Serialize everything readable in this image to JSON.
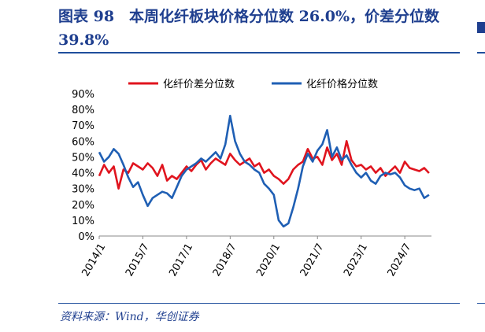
{
  "header": {
    "title": "图表 98　本周化纤板块价格分位数 26.0%，价差分位数 39.8%"
  },
  "footer": {
    "source": "资料来源：Wind，华创证券"
  },
  "chart_data": {
    "type": "line",
    "title": "",
    "xlabel": "",
    "ylabel": "",
    "ylim": [
      0,
      90
    ],
    "yticks": [
      "0%",
      "10%",
      "20%",
      "30%",
      "40%",
      "50%",
      "60%",
      "70%",
      "80%",
      "90%"
    ],
    "xticks": [
      "2014/1",
      "2015/7",
      "2017/1",
      "2018/7",
      "2020/1",
      "2021/7",
      "2023/1",
      "2024/7"
    ],
    "legend_position": "top",
    "grid": false,
    "series": [
      {
        "name": "化纤价差分位数",
        "color": "#e0141e",
        "points": [
          [
            "2014/1",
            38
          ],
          [
            "2014/3",
            45
          ],
          [
            "2014/5",
            40
          ],
          [
            "2014/7",
            44
          ],
          [
            "2014/9",
            30
          ],
          [
            "2014/11",
            42
          ],
          [
            "2015/1",
            40
          ],
          [
            "2015/3",
            46
          ],
          [
            "2015/5",
            44
          ],
          [
            "2015/7",
            42
          ],
          [
            "2015/9",
            46
          ],
          [
            "2015/11",
            43
          ],
          [
            "2016/1",
            38
          ],
          [
            "2016/3",
            45
          ],
          [
            "2016/5",
            35
          ],
          [
            "2016/7",
            38
          ],
          [
            "2016/9",
            36
          ],
          [
            "2016/11",
            40
          ],
          [
            "2017/1",
            44
          ],
          [
            "2017/3",
            41
          ],
          [
            "2017/5",
            45
          ],
          [
            "2017/7",
            48
          ],
          [
            "2017/9",
            42
          ],
          [
            "2017/11",
            46
          ],
          [
            "2018/1",
            49
          ],
          [
            "2018/3",
            47
          ],
          [
            "2018/5",
            45
          ],
          [
            "2018/7",
            52
          ],
          [
            "2018/9",
            48
          ],
          [
            "2018/11",
            45
          ],
          [
            "2019/1",
            47
          ],
          [
            "2019/3",
            49
          ],
          [
            "2019/5",
            44
          ],
          [
            "2019/7",
            46
          ],
          [
            "2019/9",
            40
          ],
          [
            "2019/11",
            42
          ],
          [
            "2020/1",
            38
          ],
          [
            "2020/3",
            36
          ],
          [
            "2020/5",
            33
          ],
          [
            "2020/7",
            36
          ],
          [
            "2020/9",
            42
          ],
          [
            "2020/11",
            45
          ],
          [
            "2021/1",
            47
          ],
          [
            "2021/3",
            55
          ],
          [
            "2021/5",
            49
          ],
          [
            "2021/7",
            50
          ],
          [
            "2021/9",
            45
          ],
          [
            "2021/11",
            56
          ],
          [
            "2022/1",
            48
          ],
          [
            "2022/3",
            52
          ],
          [
            "2022/5",
            45
          ],
          [
            "2022/7",
            60
          ],
          [
            "2022/9",
            48
          ],
          [
            "2022/11",
            44
          ],
          [
            "2023/1",
            45
          ],
          [
            "2023/3",
            42
          ],
          [
            "2023/5",
            44
          ],
          [
            "2023/7",
            40
          ],
          [
            "2023/9",
            43
          ],
          [
            "2023/11",
            38
          ],
          [
            "2024/1",
            41
          ],
          [
            "2024/3",
            44
          ],
          [
            "2024/5",
            40
          ],
          [
            "2024/7",
            47
          ],
          [
            "2024/9",
            43
          ],
          [
            "2024/11",
            42
          ],
          [
            "2025/1",
            41
          ],
          [
            "2025/3",
            43
          ],
          [
            "2025/5",
            39.8
          ]
        ]
      },
      {
        "name": "化纤价格分位数",
        "color": "#1f5fb4",
        "points": [
          [
            "2014/1",
            53
          ],
          [
            "2014/3",
            47
          ],
          [
            "2014/5",
            50
          ],
          [
            "2014/7",
            55
          ],
          [
            "2014/9",
            52
          ],
          [
            "2014/11",
            45
          ],
          [
            "2015/1",
            37
          ],
          [
            "2015/3",
            31
          ],
          [
            "2015/5",
            34
          ],
          [
            "2015/7",
            26
          ],
          [
            "2015/9",
            19
          ],
          [
            "2015/11",
            24
          ],
          [
            "2016/1",
            26
          ],
          [
            "2016/3",
            28
          ],
          [
            "2016/5",
            27
          ],
          [
            "2016/7",
            24
          ],
          [
            "2016/9",
            31
          ],
          [
            "2016/11",
            38
          ],
          [
            "2017/1",
            42
          ],
          [
            "2017/3",
            44
          ],
          [
            "2017/5",
            46
          ],
          [
            "2017/7",
            49
          ],
          [
            "2017/9",
            47
          ],
          [
            "2017/11",
            50
          ],
          [
            "2018/1",
            53
          ],
          [
            "2018/3",
            49
          ],
          [
            "2018/5",
            58
          ],
          [
            "2018/7",
            76
          ],
          [
            "2018/9",
            60
          ],
          [
            "2018/11",
            52
          ],
          [
            "2019/1",
            47
          ],
          [
            "2019/3",
            45
          ],
          [
            "2019/5",
            42
          ],
          [
            "2019/7",
            40
          ],
          [
            "2019/9",
            33
          ],
          [
            "2019/11",
            30
          ],
          [
            "2020/1",
            26
          ],
          [
            "2020/3",
            10
          ],
          [
            "2020/5",
            6
          ],
          [
            "2020/7",
            8
          ],
          [
            "2020/9",
            18
          ],
          [
            "2020/11",
            30
          ],
          [
            "2021/1",
            44
          ],
          [
            "2021/3",
            52
          ],
          [
            "2021/5",
            47
          ],
          [
            "2021/7",
            54
          ],
          [
            "2021/9",
            58
          ],
          [
            "2021/11",
            67
          ],
          [
            "2022/1",
            50
          ],
          [
            "2022/3",
            56
          ],
          [
            "2022/5",
            48
          ],
          [
            "2022/7",
            51
          ],
          [
            "2022/9",
            45
          ],
          [
            "2022/11",
            40
          ],
          [
            "2023/1",
            37
          ],
          [
            "2023/3",
            40
          ],
          [
            "2023/5",
            35
          ],
          [
            "2023/7",
            33
          ],
          [
            "2023/9",
            38
          ],
          [
            "2023/11",
            40
          ],
          [
            "2024/1",
            39
          ],
          [
            "2024/3",
            40
          ],
          [
            "2024/5",
            37
          ],
          [
            "2024/7",
            32
          ],
          [
            "2024/9",
            30
          ],
          [
            "2024/11",
            29
          ],
          [
            "2025/1",
            30
          ],
          [
            "2025/3",
            24
          ],
          [
            "2025/5",
            26.0
          ]
        ]
      }
    ]
  }
}
